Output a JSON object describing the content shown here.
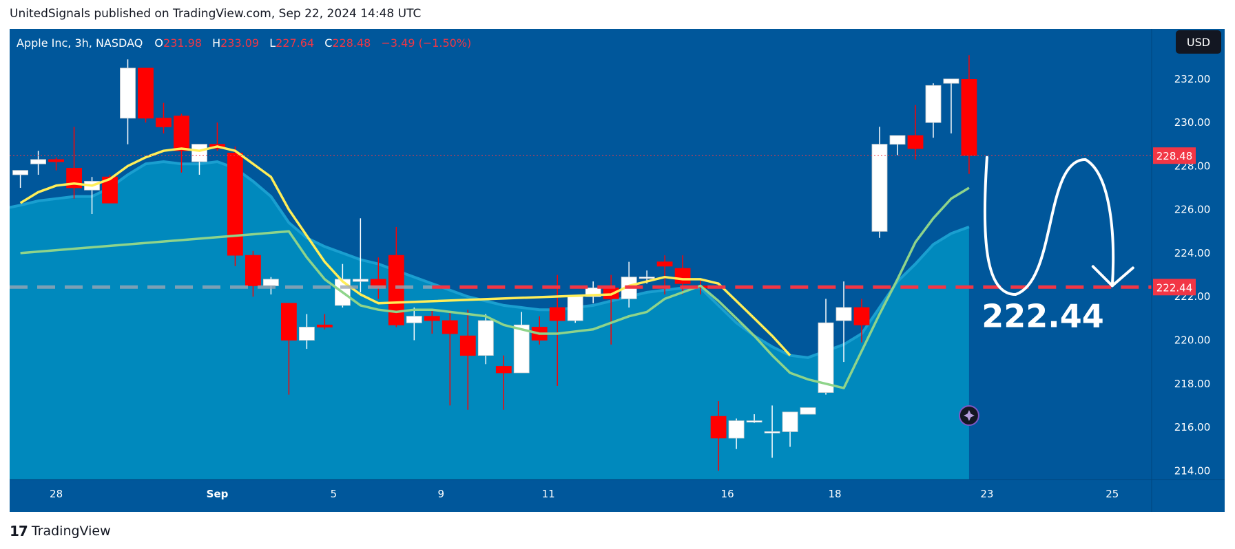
{
  "header": {
    "publisher_line": "UnitedSignals published on TradingView.com, Sep 22, 2024 14:48 UTC"
  },
  "footer": {
    "logo_mark": "17",
    "brand": "TradingView"
  },
  "chart_data": {
    "type": "candlestick",
    "symbol": "Apple Inc, 3h, NASDAQ",
    "ohlc_legend": {
      "o_label": "O",
      "o": "231.98",
      "h_label": "H",
      "h": "233.09",
      "l_label": "L",
      "l": "227.64",
      "c_label": "C",
      "c": "228.48",
      "change": "−3.49 (−1.50%)"
    },
    "currency": "USD",
    "colors": {
      "background": "#00579b",
      "area": "#0089bd",
      "up": "#ffffff",
      "down": "#ff0000",
      "ma_yellow": "#ffee58",
      "ma_green": "#8fd48a",
      "level": "#f23645",
      "last_price": "#f23645"
    },
    "ylim": [
      213.6,
      234.3
    ],
    "y_ticks": [
      "214.00",
      "216.00",
      "218.00",
      "220.00",
      "222.00",
      "224.00",
      "226.00",
      "228.00",
      "230.00",
      "232.00"
    ],
    "x_ticks": [
      {
        "label": "28",
        "i": 2
      },
      {
        "label": "Sep",
        "i": 11
      },
      {
        "label": "5",
        "i": 17.5
      },
      {
        "label": "9",
        "i": 23.5
      },
      {
        "label": "11",
        "i": 29.5
      },
      {
        "label": "16",
        "i": 39.5
      },
      {
        "label": "18",
        "i": 45.5
      },
      {
        "label": "23",
        "i": 54
      },
      {
        "label": "25",
        "i": 61
      }
    ],
    "x_domain": [
      -0.6,
      63.2
    ],
    "candles": [
      [
        227.6,
        227.8,
        227.0,
        227.8
      ],
      [
        228.1,
        228.7,
        227.6,
        228.3
      ],
      [
        228.3,
        228.4,
        227.8,
        228.2
      ],
      [
        227.9,
        229.8,
        226.5,
        227.0
      ],
      [
        226.9,
        227.5,
        225.8,
        227.3
      ],
      [
        227.5,
        227.6,
        226.3,
        226.3
      ],
      [
        230.2,
        232.9,
        229.0,
        232.5
      ],
      [
        232.5,
        232.5,
        230.0,
        230.2
      ],
      [
        230.2,
        230.9,
        229.5,
        229.8
      ],
      [
        230.3,
        230.4,
        227.7,
        228.7
      ],
      [
        228.2,
        229.0,
        227.6,
        229.0
      ],
      [
        229.0,
        230.0,
        228.7,
        228.8
      ],
      [
        228.6,
        228.9,
        223.4,
        223.9
      ],
      [
        223.9,
        224.1,
        222.0,
        222.5
      ],
      [
        222.5,
        222.9,
        222.1,
        222.8
      ],
      [
        221.7,
        221.7,
        217.5,
        220.0
      ],
      [
        220.0,
        221.2,
        219.6,
        220.6
      ],
      [
        220.7,
        221.2,
        220.5,
        220.6
      ],
      [
        221.6,
        223.5,
        221.5,
        222.8
      ],
      [
        222.7,
        225.6,
        222.2,
        222.8
      ],
      [
        222.8,
        223.8,
        221.9,
        222.4
      ],
      [
        223.9,
        225.2,
        220.6,
        220.7
      ],
      [
        220.8,
        221.5,
        220.0,
        221.1
      ],
      [
        221.1,
        221.4,
        220.3,
        220.9
      ],
      [
        220.9,
        221.3,
        217.0,
        220.3
      ],
      [
        220.2,
        221.4,
        216.8,
        219.3
      ],
      [
        219.3,
        221.2,
        218.9,
        220.9
      ],
      [
        218.8,
        219.3,
        216.8,
        218.5
      ],
      [
        218.5,
        221.3,
        218.5,
        220.7
      ],
      [
        220.6,
        221.1,
        219.8,
        220.0
      ],
      [
        221.5,
        223.0,
        217.9,
        220.9
      ],
      [
        220.9,
        222.0,
        220.8,
        222.0
      ],
      [
        222.0,
        222.7,
        221.7,
        222.4
      ],
      [
        222.4,
        223.0,
        219.8,
        221.9
      ],
      [
        221.9,
        223.6,
        221.5,
        222.9
      ],
      [
        222.9,
        223.2,
        222.6,
        222.9
      ],
      [
        223.6,
        223.9,
        222.1,
        223.4
      ],
      [
        223.3,
        223.9,
        222.1,
        222.6
      ],
      [
        222.5,
        222.8,
        222.1,
        222.4
      ],
      [
        216.5,
        217.2,
        214.0,
        215.5
      ],
      [
        215.5,
        216.4,
        215.0,
        216.3
      ],
      [
        216.3,
        216.6,
        216.2,
        216.3
      ],
      [
        215.8,
        217.0,
        214.6,
        215.8
      ],
      [
        215.8,
        216.7,
        215.1,
        216.7
      ],
      [
        216.6,
        216.9,
        216.6,
        216.9
      ],
      [
        217.6,
        221.9,
        217.5,
        220.8
      ],
      [
        220.9,
        222.7,
        219.0,
        221.5
      ],
      [
        221.5,
        221.9,
        219.9,
        220.7
      ],
      [
        225.0,
        229.8,
        224.7,
        229.0
      ],
      [
        229.0,
        229.4,
        228.5,
        229.4
      ],
      [
        229.4,
        230.8,
        228.3,
        228.8
      ],
      [
        230.0,
        231.8,
        229.3,
        231.7
      ],
      [
        231.8,
        232.0,
        229.5,
        232.0
      ],
      [
        231.98,
        233.09,
        227.64,
        228.48
      ]
    ],
    "ma_yellow": [
      [
        0,
        226.3
      ],
      [
        1,
        226.8
      ],
      [
        2,
        227.1
      ],
      [
        3,
        227.2
      ],
      [
        4,
        227.1
      ],
      [
        5,
        227.4
      ],
      [
        6,
        228.0
      ],
      [
        7,
        228.4
      ],
      [
        8,
        228.7
      ],
      [
        9,
        228.8
      ],
      [
        10,
        228.7
      ],
      [
        11,
        228.9
      ],
      [
        12,
        228.7
      ],
      [
        13,
        228.1
      ],
      [
        14,
        227.5
      ],
      [
        15,
        226.0
      ],
      [
        16,
        224.8
      ],
      [
        17,
        223.6
      ],
      [
        18,
        222.7
      ],
      [
        19,
        222.1
      ],
      [
        20,
        221.7
      ],
      [
        33,
        222.1
      ],
      [
        34,
        222.5
      ],
      [
        35,
        222.7
      ],
      [
        36,
        222.9
      ],
      [
        37,
        222.8
      ],
      [
        38,
        222.8
      ],
      [
        39,
        222.6
      ],
      [
        40,
        221.8
      ],
      [
        41,
        221.0
      ],
      [
        42,
        220.2
      ],
      [
        43,
        219.3
      ]
    ],
    "ma_green": [
      [
        0,
        224.0
      ],
      [
        15,
        225.0
      ],
      [
        16,
        223.8
      ],
      [
        17,
        222.8
      ],
      [
        18,
        222.2
      ],
      [
        19,
        221.6
      ],
      [
        20,
        221.4
      ],
      [
        21,
        221.3
      ],
      [
        22,
        221.4
      ],
      [
        23,
        221.4
      ],
      [
        24,
        221.3
      ],
      [
        25,
        221.2
      ],
      [
        26,
        221.1
      ],
      [
        27,
        220.7
      ],
      [
        28,
        220.5
      ],
      [
        29,
        220.3
      ],
      [
        30,
        220.3
      ],
      [
        31,
        220.4
      ],
      [
        32,
        220.5
      ],
      [
        33,
        220.8
      ],
      [
        34,
        221.1
      ],
      [
        35,
        221.3
      ],
      [
        36,
        221.9
      ],
      [
        37,
        222.2
      ],
      [
        38,
        222.5
      ],
      [
        39,
        221.8
      ],
      [
        40,
        221.0
      ],
      [
        41,
        220.2
      ],
      [
        42,
        219.3
      ],
      [
        43,
        218.5
      ],
      [
        44,
        218.2
      ],
      [
        45,
        218.0
      ],
      [
        46,
        217.8
      ],
      [
        47,
        219.5
      ],
      [
        48,
        221.2
      ],
      [
        49,
        222.8
      ],
      [
        50,
        224.5
      ],
      [
        51,
        225.6
      ],
      [
        52,
        226.5
      ],
      [
        53,
        227.0
      ]
    ],
    "area_line": [
      [
        -0.6,
        226.1
      ],
      [
        0,
        226.2
      ],
      [
        1,
        226.4
      ],
      [
        2,
        226.5
      ],
      [
        3,
        226.6
      ],
      [
        4,
        226.6
      ],
      [
        5,
        227.0
      ],
      [
        6,
        227.6
      ],
      [
        7,
        228.1
      ],
      [
        8,
        228.2
      ],
      [
        9,
        228.1
      ],
      [
        10,
        228.1
      ],
      [
        11,
        228.2
      ],
      [
        12,
        227.9
      ],
      [
        13,
        227.3
      ],
      [
        14,
        226.6
      ],
      [
        15,
        225.4
      ],
      [
        16,
        224.7
      ],
      [
        17,
        224.3
      ],
      [
        18,
        224.0
      ],
      [
        19,
        223.7
      ],
      [
        20,
        223.5
      ],
      [
        21,
        223.2
      ],
      [
        22,
        222.9
      ],
      [
        23,
        222.6
      ],
      [
        24,
        222.3
      ],
      [
        25,
        222.0
      ],
      [
        26,
        221.8
      ],
      [
        27,
        221.6
      ],
      [
        28,
        221.5
      ],
      [
        29,
        221.4
      ],
      [
        30,
        221.4
      ],
      [
        31,
        221.5
      ],
      [
        32,
        221.6
      ],
      [
        33,
        221.8
      ],
      [
        34,
        222.0
      ],
      [
        35,
        222.2
      ],
      [
        36,
        222.3
      ],
      [
        37,
        222.4
      ],
      [
        38,
        222.4
      ],
      [
        39,
        221.6
      ],
      [
        40,
        220.8
      ],
      [
        41,
        220.2
      ],
      [
        42,
        219.7
      ],
      [
        43,
        219.3
      ],
      [
        44,
        219.2
      ],
      [
        45,
        219.5
      ],
      [
        46,
        219.8
      ],
      [
        47,
        220.3
      ],
      [
        48,
        221.5
      ],
      [
        49,
        222.7
      ],
      [
        50,
        223.5
      ],
      [
        51,
        224.4
      ],
      [
        52,
        224.9
      ],
      [
        53,
        225.2
      ]
    ],
    "support_level": 222.44,
    "support_label": "222.44",
    "last_price": 228.48,
    "last_price_label": "228.48",
    "level_tag_label": "222.44",
    "projection_path": [
      [
        54.0,
        228.4
      ],
      [
        54.6,
        223.0
      ],
      [
        55.6,
        222.1
      ],
      [
        57.5,
        225.5
      ],
      [
        59.5,
        228.3
      ],
      [
        60.7,
        224.0
      ],
      [
        61.0,
        222.5
      ]
    ]
  }
}
